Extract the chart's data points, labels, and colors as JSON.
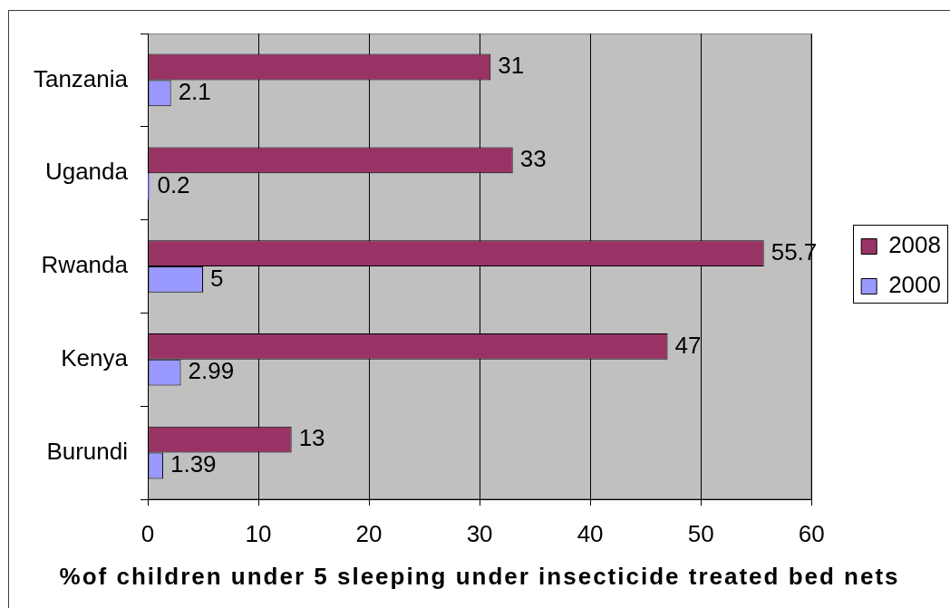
{
  "chart_data": {
    "type": "bar",
    "orientation": "horizontal",
    "categories": [
      "Tanzania",
      "Uganda",
      "Rwanda",
      "Kenya",
      "Burundi"
    ],
    "series": [
      {
        "name": "2008",
        "color": "#993366",
        "values": [
          31,
          33,
          55.7,
          47,
          13
        ]
      },
      {
        "name": "2000",
        "color": "#9999ff",
        "values": [
          2.1,
          0.2,
          5,
          2.99,
          1.39
        ]
      }
    ],
    "xlabel": "%of children under 5 sleeping under insecticide treated bed nets",
    "xlim": [
      0,
      60
    ],
    "xticks": [
      0,
      10,
      20,
      30,
      40,
      50,
      60
    ],
    "grid": "x",
    "legend": "right",
    "data_labels": true
  }
}
